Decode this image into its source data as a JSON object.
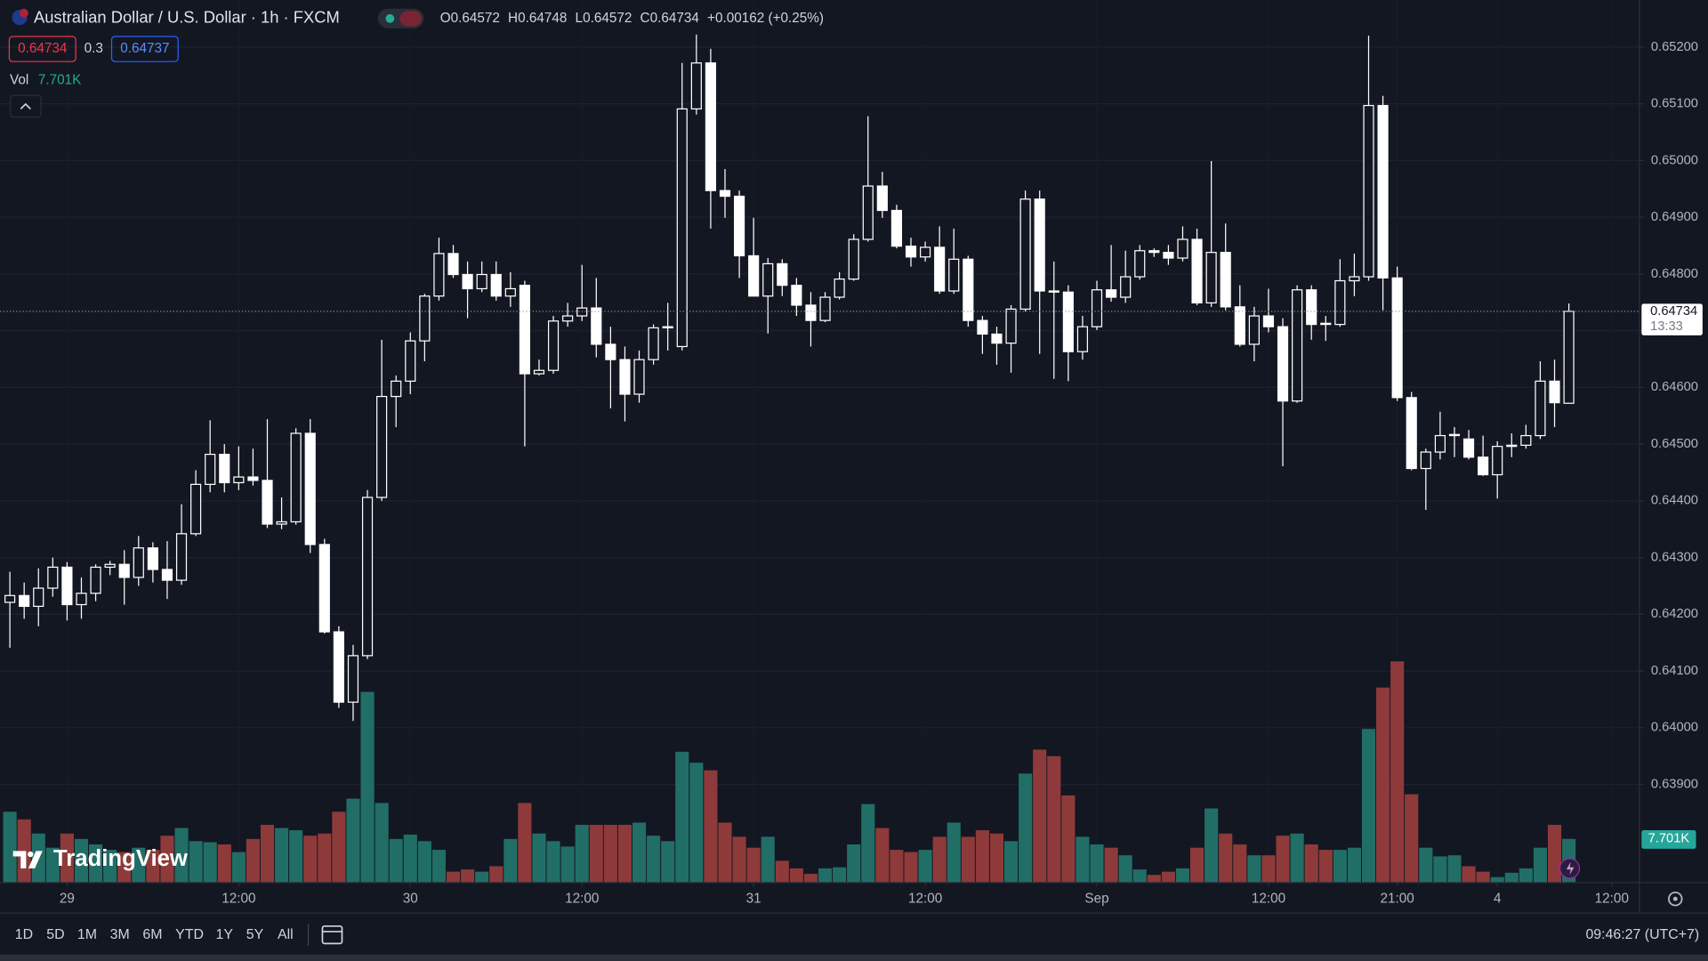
{
  "header": {
    "symbol": "Australian Dollar / U.S. Dollar · 1h · FXCM",
    "ohlc": [
      {
        "label": "O",
        "value": 0.64572
      },
      {
        "label": "H",
        "value": 0.64748
      },
      {
        "label": "L",
        "value": 0.64572
      },
      {
        "label": "C",
        "value": 0.64734
      }
    ],
    "change": "+0.00162 (+0.25%)",
    "bid": 0.64734,
    "spread": 0.3,
    "ask": 0.64737,
    "volume_label": "Vol",
    "volume_value": "7.701K"
  },
  "chart_data": {
    "type": "candlestick",
    "open": [
      0.64221,
      0.64233,
      0.64214,
      0.64246,
      0.64283,
      0.64217,
      0.64237,
      0.64283,
      0.64288,
      0.64265,
      0.64317,
      0.64279,
      0.6426,
      0.64342,
      0.64429,
      0.64482,
      0.64432,
      0.64442,
      0.64436,
      0.64359,
      0.64363,
      0.64519,
      0.64323,
      0.64169,
      0.64045,
      0.64127,
      0.64406,
      0.64584,
      0.64611,
      0.64682,
      0.64761,
      0.64836,
      0.64799,
      0.64774,
      0.64799,
      0.64761,
      0.6478,
      0.64624,
      0.6463,
      0.64717,
      0.64726,
      0.6474,
      0.64676,
      0.64649,
      0.64588,
      0.64649,
      0.64705,
      0.64672,
      0.65091,
      0.65172,
      0.64947,
      0.64937,
      0.64832,
      0.64761,
      0.64818,
      0.6478,
      0.64745,
      0.64718,
      0.64759,
      0.64791,
      0.64861,
      0.64955,
      0.64912,
      0.64849,
      0.6483,
      0.64847,
      0.6477,
      0.64826,
      0.64718,
      0.64694,
      0.64678,
      0.64738,
      0.64932,
      0.6477,
      0.64768,
      0.64663,
      0.64707,
      0.64772,
      0.64759,
      0.64795,
      0.64841,
      0.64838,
      0.64828,
      0.64861,
      0.64749,
      0.64838,
      0.64742,
      0.64676,
      0.64726,
      0.64707,
      0.64576,
      0.64772,
      0.64713,
      0.64711,
      0.64788,
      0.64795,
      0.65097,
      0.64793,
      0.64582,
      0.64457,
      0.64486,
      0.64515,
      0.64509,
      0.64477,
      0.64446,
      0.64496,
      0.64498,
      0.64515,
      0.64611,
      0.64572
    ],
    "high": [
      0.64275,
      0.64256,
      0.64281,
      0.643,
      0.64292,
      0.64265,
      0.64288,
      0.64294,
      0.64313,
      0.64338,
      0.64327,
      0.64329,
      0.64394,
      0.64454,
      0.64542,
      0.645,
      0.64496,
      0.64492,
      0.64544,
      0.64406,
      0.64528,
      0.64544,
      0.64333,
      0.64179,
      0.64146,
      0.64419,
      0.64684,
      0.64621,
      0.64697,
      0.64765,
      0.64864,
      0.64851,
      0.64822,
      0.64822,
      0.64822,
      0.64803,
      0.64788,
      0.64649,
      0.64726,
      0.64749,
      0.64816,
      0.64793,
      0.64707,
      0.64672,
      0.64665,
      0.64711,
      0.64749,
      0.65172,
      0.65222,
      0.65197,
      0.64985,
      0.64947,
      0.64899,
      0.64828,
      0.64826,
      0.64793,
      0.64768,
      0.64768,
      0.64803,
      0.6487,
      0.65078,
      0.6498,
      0.64922,
      0.64864,
      0.64857,
      0.64884,
      0.6488,
      0.64832,
      0.64726,
      0.64707,
      0.64745,
      0.64947,
      0.64947,
      0.64822,
      0.6478,
      0.64726,
      0.64788,
      0.64851,
      0.64841,
      0.64851,
      0.64845,
      0.64851,
      0.64884,
      0.6488,
      0.64999,
      0.64889,
      0.6478,
      0.64742,
      0.64774,
      0.64722,
      0.6478,
      0.6478,
      0.64726,
      0.64826,
      0.64836,
      0.6522,
      0.65114,
      0.64813,
      0.64592,
      0.64492,
      0.64557,
      0.6453,
      0.64525,
      0.64515,
      0.64505,
      0.64519,
      0.64534,
      0.64646,
      0.64649,
      0.64748
    ],
    "low": [
      0.64141,
      0.64192,
      0.64179,
      0.64231,
      0.64189,
      0.64192,
      0.64223,
      0.64269,
      0.64217,
      0.6425,
      0.64256,
      0.64227,
      0.64252,
      0.64338,
      0.64415,
      0.64415,
      0.64419,
      0.64427,
      0.64352,
      0.6435,
      0.64358,
      0.64308,
      0.64166,
      0.64035,
      0.64012,
      0.64121,
      0.644,
      0.6453,
      0.64588,
      0.64646,
      0.64753,
      0.64793,
      0.64722,
      0.64768,
      0.64753,
      0.64742,
      0.64496,
      0.64621,
      0.64624,
      0.64707,
      0.64717,
      0.64653,
      0.64563,
      0.6454,
      0.64573,
      0.6464,
      0.64665,
      0.64665,
      0.65081,
      0.6488,
      0.64899,
      0.64793,
      0.64761,
      0.64695,
      0.64761,
      0.64726,
      0.64672,
      0.64715,
      0.64755,
      0.64788,
      0.64857,
      0.64899,
      0.64845,
      0.64813,
      0.64822,
      0.64765,
      0.64765,
      0.64707,
      0.64659,
      0.6464,
      0.64626,
      0.64734,
      0.64659,
      0.64615,
      0.64611,
      0.64649,
      0.64701,
      0.64751,
      0.64749,
      0.6479,
      0.6483,
      0.64816,
      0.64822,
      0.64745,
      0.64742,
      0.64736,
      0.64672,
      0.64646,
      0.64697,
      0.64461,
      0.64573,
      0.64684,
      0.64682,
      0.64707,
      0.64761,
      0.64788,
      0.64736,
      0.64576,
      0.64454,
      0.64384,
      0.64473,
      0.64477,
      0.64473,
      0.64444,
      0.64404,
      0.64477,
      0.64492,
      0.64509,
      0.6453,
      0.64572
    ],
    "close": [
      0.64233,
      0.64214,
      0.64246,
      0.64283,
      0.64217,
      0.64237,
      0.64283,
      0.64288,
      0.64265,
      0.64317,
      0.64279,
      0.6426,
      0.64342,
      0.64429,
      0.64482,
      0.64432,
      0.64442,
      0.64436,
      0.64359,
      0.64363,
      0.64519,
      0.64323,
      0.64169,
      0.64045,
      0.64127,
      0.64406,
      0.64584,
      0.64611,
      0.64682,
      0.64761,
      0.64836,
      0.64799,
      0.64774,
      0.64799,
      0.64761,
      0.64774,
      0.64624,
      0.6463,
      0.64717,
      0.64726,
      0.6474,
      0.64676,
      0.64649,
      0.64588,
      0.64649,
      0.64705,
      0.64707,
      0.65091,
      0.65172,
      0.64947,
      0.64937,
      0.64832,
      0.64761,
      0.64818,
      0.6478,
      0.64745,
      0.64718,
      0.64759,
      0.64791,
      0.64861,
      0.64955,
      0.64912,
      0.64849,
      0.6483,
      0.64847,
      0.6477,
      0.64826,
      0.64718,
      0.64694,
      0.64678,
      0.64738,
      0.64932,
      0.6477,
      0.64768,
      0.64663,
      0.64707,
      0.64772,
      0.64759,
      0.64795,
      0.64841,
      0.64838,
      0.64828,
      0.64861,
      0.64749,
      0.64838,
      0.64742,
      0.64676,
      0.64726,
      0.64707,
      0.64576,
      0.64772,
      0.64711,
      0.64711,
      0.64788,
      0.64795,
      0.65097,
      0.64793,
      0.64582,
      0.64457,
      0.64486,
      0.64515,
      0.64517,
      0.64477,
      0.64446,
      0.64496,
      0.64498,
      0.64515,
      0.64611,
      0.64573,
      0.64734
    ],
    "volume": [
      12500,
      11150,
      8650,
      6150,
      8650,
      7690,
      6730,
      5770,
      5380,
      6150,
      5770,
      8270,
      9620,
      7310,
      7120,
      6730,
      5380,
      7690,
      10190,
      9620,
      9230,
      8270,
      8650,
      12500,
      14810,
      33650,
      14040,
      7690,
      8460,
      7310,
      5770,
      1920,
      2310,
      1920,
      2880,
      7690,
      14040,
      8650,
      7310,
      6350,
      10190,
      10190,
      10190,
      10190,
      10580,
      8270,
      7310,
      23080,
      21150,
      19810,
      10580,
      8080,
      6150,
      8080,
      3850,
      2500,
      1540,
      2500,
      2690,
      6730,
      13850,
      9620,
      5770,
      5380,
      5770,
      8080,
      10580,
      8080,
      9230,
      8650,
      7310,
      19230,
      23460,
      22310,
      15380,
      8080,
      6730,
      6150,
      4810,
      2310,
      1350,
      1920,
      2500,
      6150,
      13080,
      8650,
      6730,
      4810,
      4810,
      8270,
      8650,
      6730,
      5770,
      5770,
      6150,
      27110,
      34420,
      39040,
      15580,
      6150,
      4620,
      4810,
      2880,
      1920,
      960,
      1730,
      2500,
      6150,
      10190,
      7701
    ],
    "last_volume_label": "7.701K",
    "last_price": 0.64734,
    "countdown": "13:33",
    "up_color": "#ffffff",
    "down_color": "#ffffff",
    "hollow_up": true,
    "volume_up_color": "#216e67",
    "volume_down_color": "#8e3a3a",
    "ylim": [
      0.63727,
      0.65283
    ],
    "vlim": [
      0,
      40000
    ],
    "yticks": [
      {
        "value": 0.652,
        "label": "0.65200"
      },
      {
        "value": 0.651,
        "label": "0.65100"
      },
      {
        "value": 0.65,
        "label": "0.65000"
      },
      {
        "value": 0.649,
        "label": "0.64900"
      },
      {
        "value": 0.648,
        "label": "0.64800"
      },
      {
        "value": 0.647,
        "label": "0.64700"
      },
      {
        "value": 0.646,
        "label": "0.64600"
      },
      {
        "value": 0.645,
        "label": "0.64500"
      },
      {
        "value": 0.644,
        "label": "0.64400"
      },
      {
        "value": 0.643,
        "label": "0.64300"
      },
      {
        "value": 0.642,
        "label": "0.64200"
      },
      {
        "value": 0.641,
        "label": "0.64100"
      },
      {
        "value": 0.64,
        "label": "0.64000"
      },
      {
        "value": 0.639,
        "label": "0.63900"
      }
    ],
    "xlim": [
      -0.69,
      113.93
    ],
    "xticks": [
      {
        "value": 4,
        "label": "29"
      },
      {
        "value": 16,
        "label": "12:00"
      },
      {
        "value": 28,
        "label": "30"
      },
      {
        "value": 40,
        "label": "12:00"
      },
      {
        "value": 52,
        "label": "31"
      },
      {
        "value": 64,
        "label": "12:00"
      },
      {
        "value": 76,
        "label": "Sep"
      },
      {
        "value": 88,
        "label": "12:00"
      },
      {
        "value": 97,
        "label": "21:00"
      },
      {
        "value": 104,
        "label": "4"
      },
      {
        "value": 112,
        "label": "12:00"
      }
    ],
    "grid": true,
    "watermark": "TradingView"
  },
  "toolbar": {
    "ranges": [
      "1D",
      "5D",
      "1M",
      "3M",
      "6M",
      "YTD",
      "1Y",
      "5Y",
      "All"
    ],
    "clock": "09:46:27 (UTC+7)"
  }
}
